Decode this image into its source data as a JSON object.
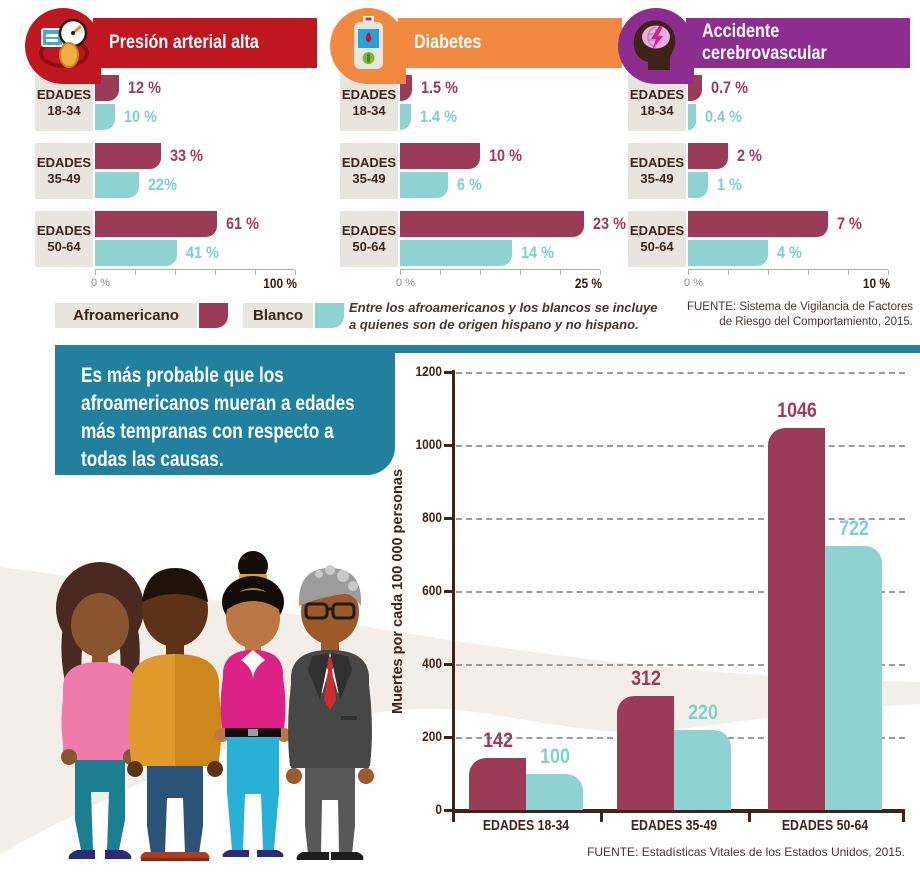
{
  "colors": {
    "afro": "#9a3b58",
    "blanco": "#8ed2d2",
    "blanco-text": "#7ecfcf",
    "red": "#c0161f",
    "orange": "#f18a40",
    "purple": "#8e2d90",
    "callout": "#20809e",
    "label-bg": "#e8e5df",
    "dark-text": "#3f241a",
    "ivory": "#f3efe8",
    "axis-gray": "#b3b0aa",
    "grid-gray": "#9b9b9b"
  },
  "legend": {
    "afro": "Afroamericano",
    "blanco": "Blanco"
  },
  "note": {
    "lines": [
      "Entre los afroamericanos y los blancos se incluye",
      "a quienes son de origen hispano y no hispano."
    ]
  },
  "sources": {
    "top_lines": [
      "FUENTE: Sistema de Vigilancia de Factores",
      "de Riesgo del Comportamiento, 2015."
    ],
    "bottom": "FUENTE: Estadísticas Vitales de los Estados Unidos, 2015."
  },
  "callout": {
    "text": "Es más probable que los afroamericanos mueran a edades más tempranas con respecto a todas las causas."
  },
  "chart_data": [
    {
      "type": "bar",
      "orientation": "horizontal",
      "title": "Presión arterial alta",
      "icon": "blood-pressure-monitor-icon",
      "header_color": "#c0161f",
      "category_prefix": "EDADES",
      "categories": [
        "18-34",
        "35-49",
        "50-64"
      ],
      "series": [
        {
          "name": "Afroamericano",
          "values": [
            12,
            33,
            61
          ],
          "labels": [
            "12 %",
            "33 %",
            "61 %"
          ]
        },
        {
          "name": "Blanco",
          "values": [
            10,
            22,
            41
          ],
          "labels": [
            "10 %",
            "22%",
            "41 %"
          ]
        }
      ],
      "xlim": [
        0,
        100
      ],
      "x_axis_labels": [
        "0 %",
        "100 %"
      ]
    },
    {
      "type": "bar",
      "orientation": "horizontal",
      "title": "Diabetes",
      "icon": "glucose-meter-icon",
      "header_color": "#f18a40",
      "category_prefix": "EDADES",
      "categories": [
        "18-34",
        "35-49",
        "50-64"
      ],
      "series": [
        {
          "name": "Afroamericano",
          "values": [
            1.5,
            10,
            23
          ],
          "labels": [
            "1.5 %",
            "10 %",
            "23 %"
          ]
        },
        {
          "name": "Blanco",
          "values": [
            1.4,
            6,
            14
          ],
          "labels": [
            "1.4 %",
            "6 %",
            "14 %"
          ]
        }
      ],
      "xlim": [
        0,
        25
      ],
      "x_axis_labels": [
        "0 %",
        "25 %"
      ]
    },
    {
      "type": "bar",
      "orientation": "horizontal",
      "title": "Accidente cerebrovascular",
      "icon": "brain-stroke-icon",
      "header_color": "#8e2d90",
      "category_prefix": "EDADES",
      "categories": [
        "18-34",
        "35-49",
        "50-64"
      ],
      "series": [
        {
          "name": "Afroamericano",
          "values": [
            0.7,
            2,
            7
          ],
          "labels": [
            "0.7 %",
            "2 %",
            "7 %"
          ]
        },
        {
          "name": "Blanco",
          "values": [
            0.4,
            1,
            4
          ],
          "labels": [
            "0.4 %",
            "1 %",
            "4 %"
          ]
        }
      ],
      "xlim": [
        0,
        10
      ],
      "x_axis_labels": [
        "0 %",
        "10 %"
      ]
    },
    {
      "type": "bar",
      "orientation": "vertical",
      "categories": [
        "EDADES 18-34",
        "EDADES 35-49",
        "EDADES 50-64"
      ],
      "series": [
        {
          "name": "Afroamericano",
          "color": "#9a3b58",
          "values": [
            142,
            312,
            1046
          ]
        },
        {
          "name": "Blanco",
          "color": "#8ed2d2",
          "values": [
            100,
            220,
            722
          ]
        }
      ],
      "ylabel": "Muertes por cada 100 000 personas",
      "ylim": [
        0,
        1200
      ],
      "yticks": [
        0,
        200,
        400,
        600,
        800,
        1000,
        1200
      ],
      "grid": "dashed-horizontal",
      "legend_position": "none"
    }
  ]
}
